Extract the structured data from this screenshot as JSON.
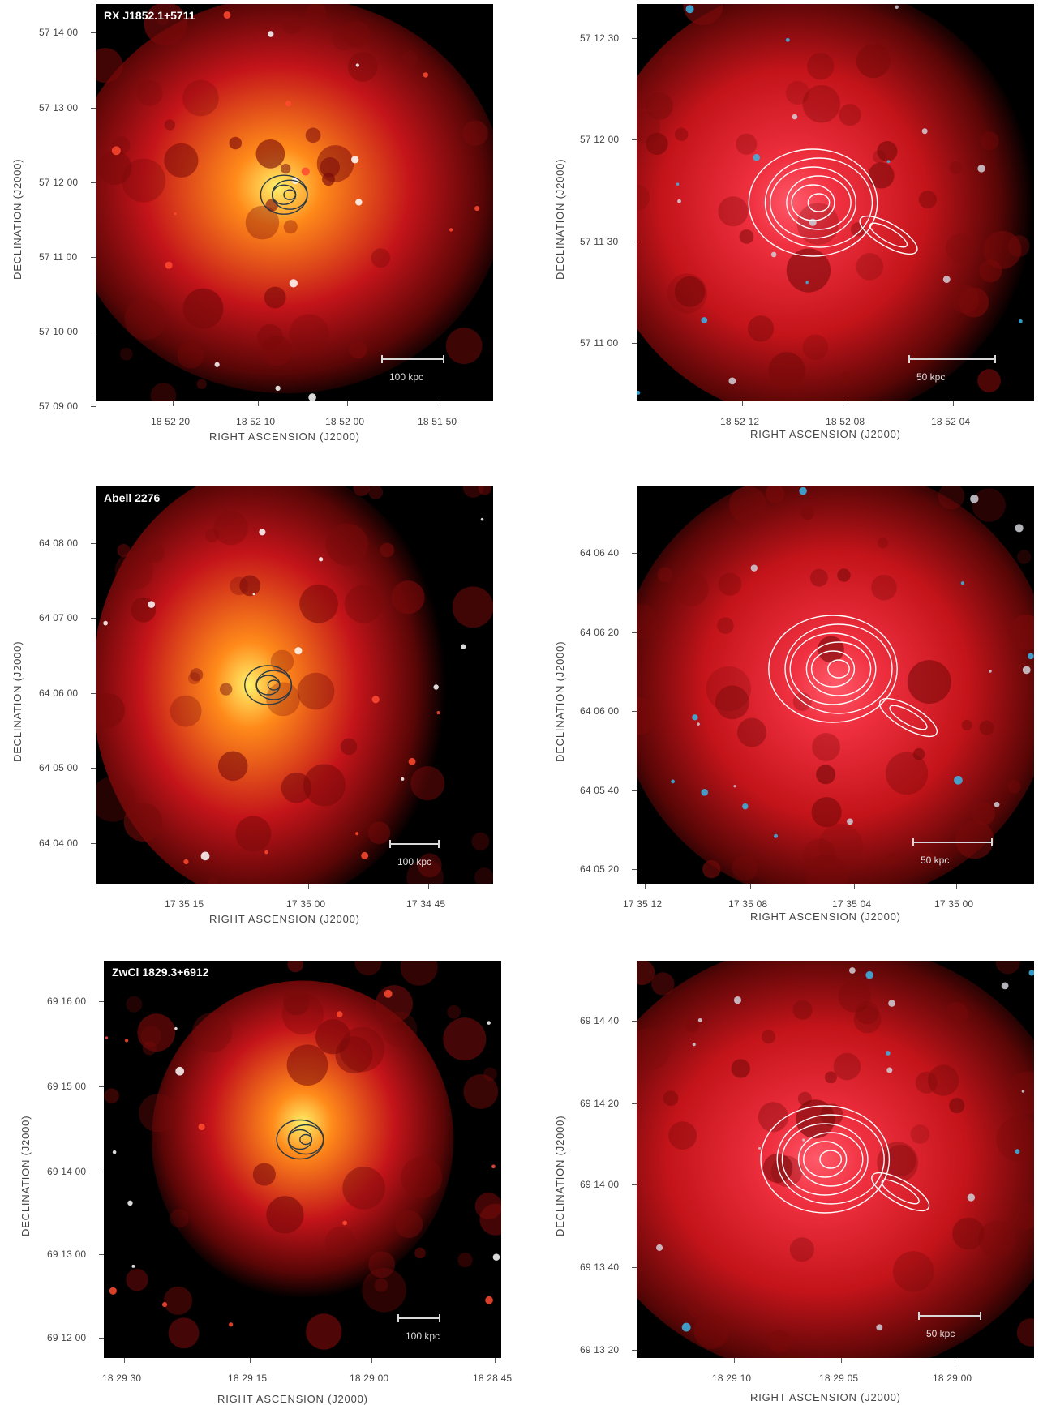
{
  "panels": [
    {
      "title": "RX J1852.1+5711",
      "ylabel": "DECLINATION (J2000)",
      "xlabel": "RIGHT ASCENSION (J2000)",
      "yticks": [
        "57 14 00",
        "57 13 00",
        "57 12 00",
        "57 11 00",
        "57 10 00",
        "57 09 00"
      ],
      "xticks": [
        "18 52 20",
        "18 52 10",
        "18 52 00",
        "18 51 50"
      ],
      "scalebar": "100 kpc",
      "contour_color": "#2a3a45",
      "core_color": "#fff06a"
    },
    {
      "title": "",
      "ylabel": "DECLINATION (J2000)",
      "xlabel": "RIGHT ASCENSION (J2000)",
      "yticks": [
        "57 12 30",
        "57 12 00",
        "57 11 30",
        "57 11 00"
      ],
      "xticks": [
        "18 52 12",
        "18 52 08",
        "18 52 04"
      ],
      "scalebar": "50 kpc",
      "contour_color": "#ffffff",
      "core_color": "#ff5a6a"
    },
    {
      "title": "Abell 2276",
      "ylabel": "DECLINATION (J2000)",
      "xlabel": "RIGHT ASCENSION (J2000)",
      "yticks": [
        "64 08 00",
        "64 07 00",
        "64 06 00",
        "64 05 00",
        "64 04 00"
      ],
      "xticks": [
        "17 35 15",
        "17 35 00",
        "17 34 45"
      ],
      "scalebar": "100 kpc",
      "contour_color": "#2a3a45",
      "core_color": "#fff06a"
    },
    {
      "title": "",
      "ylabel": "DECLINATION (J2000)",
      "xlabel": "RIGHT ASCENSION (J2000)",
      "yticks": [
        "64 06 40",
        "64 06 20",
        "64 06 00",
        "64 05 40",
        "64 05 20"
      ],
      "xticks": [
        "17 35 12",
        "17 35 08",
        "17 35 04",
        "17 35 00"
      ],
      "scalebar": "50 kpc",
      "contour_color": "#ffffff",
      "core_color": "#ff5a6a"
    },
    {
      "title": "ZwCl 1829.3+6912",
      "ylabel": "DECLINATION (J2000)",
      "xlabel": "RIGHT ASCENSION (J2000)",
      "yticks": [
        "69 16 00",
        "69 15 00",
        "69 14 00",
        "69 13 00",
        "69 12 00"
      ],
      "xticks": [
        "18 29 30",
        "18 29 15",
        "18 29 00",
        "18 28 45"
      ],
      "scalebar": "100 kpc",
      "contour_color": "#2a3a45",
      "core_color": "#fff06a"
    },
    {
      "title": "",
      "ylabel": "DECLINATION (J2000)",
      "xlabel": "RIGHT ASCENSION (J2000)",
      "yticks": [
        "69 14 40",
        "69 14 20",
        "69 14 00",
        "69 13 40",
        "69 13 20"
      ],
      "xticks": [
        "18 29 10",
        "18 29 05",
        "18 29 00"
      ],
      "scalebar": "50 kpc",
      "contour_color": "#ffffff",
      "core_color": "#ff5a6a"
    }
  ]
}
